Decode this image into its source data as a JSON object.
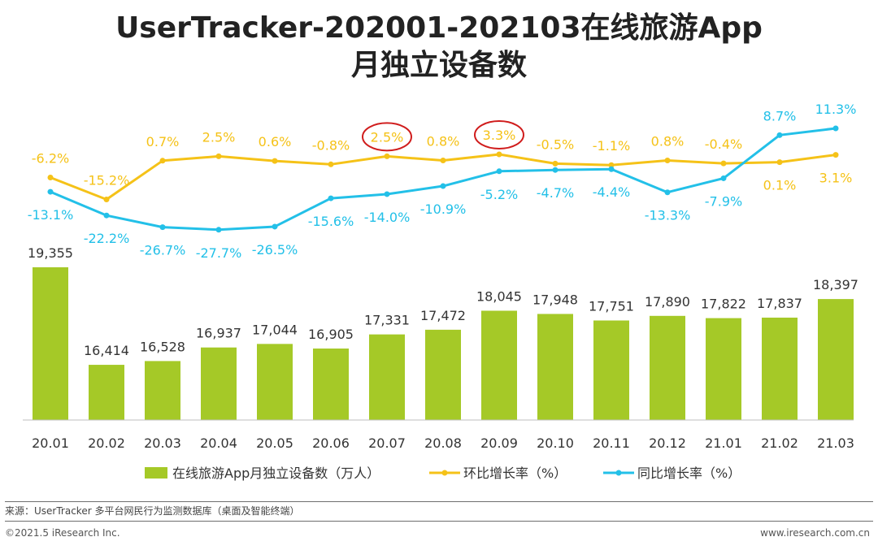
{
  "title_line1": "UserTracker-202001-202103在线旅游App",
  "title_line2": "月独立设备数",
  "source": "来源：UserTracker 多平台网民行为监测数据库（桌面及智能终端）",
  "copyright": "©2021.5 iResearch Inc.",
  "website": "www.iresearch.com.cn",
  "colors": {
    "bar": "#a5c927",
    "mom": "#f5c218",
    "yoy": "#23c0e8",
    "highlight": "#d01c1c"
  },
  "chart_data": {
    "type": "bar",
    "categories": [
      "20.01",
      "20.02",
      "20.03",
      "20.04",
      "20.05",
      "20.06",
      "20.07",
      "20.08",
      "20.09",
      "20.10",
      "20.11",
      "20.12",
      "21.01",
      "21.02",
      "21.03"
    ],
    "series": [
      {
        "name": "在线旅游App月独立设备数（万人）",
        "type": "bar",
        "values": [
          19355,
          16414,
          16528,
          16937,
          17044,
          16905,
          17331,
          17472,
          18045,
          17948,
          17751,
          17890,
          17822,
          17837,
          18397
        ],
        "labels": [
          "19,355",
          "16,414",
          "16,528",
          "16,937",
          "17,044",
          "16,905",
          "17,331",
          "17,472",
          "18,045",
          "17,948",
          "17,751",
          "17,890",
          "17,822",
          "17,837",
          "18,397"
        ]
      },
      {
        "name": "环比增长率（%）",
        "type": "line",
        "values": [
          -6.2,
          -15.2,
          0.7,
          2.5,
          0.6,
          -0.8,
          2.5,
          0.8,
          3.3,
          -0.5,
          -1.1,
          0.8,
          -0.4,
          0.1,
          3.1
        ],
        "labels": [
          "-6.2%",
          "-15.2%",
          "0.7%",
          "2.5%",
          "0.6%",
          "-0.8%",
          "2.5%",
          "0.8%",
          "3.3%",
          "-0.5%",
          "-1.1%",
          "0.8%",
          "-0.4%",
          "0.1%",
          "3.1%"
        ]
      },
      {
        "name": "同比增长率（%）",
        "type": "line",
        "values": [
          -13.1,
          -22.2,
          -26.7,
          -27.7,
          -26.5,
          -15.6,
          -14.0,
          -10.9,
          -5.2,
          -4.7,
          -4.4,
          -13.3,
          -7.9,
          8.7,
          11.3
        ],
        "labels": [
          "-13.1%",
          "-22.2%",
          "-26.7%",
          "-27.7%",
          "-26.5%",
          "-15.6%",
          "-14.0%",
          "-10.9%",
          "-5.2%",
          "-4.7%",
          "-4.4%",
          "-13.3%",
          "-7.9%",
          "8.7%",
          "11.3%"
        ]
      }
    ],
    "highlighted_mom_indices": [
      6,
      8
    ],
    "legend_position": "bottom",
    "grid": false
  }
}
